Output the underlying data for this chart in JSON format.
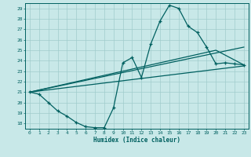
{
  "xlabel": "Humidex (Indice chaleur)",
  "xlim": [
    -0.5,
    23.5
  ],
  "ylim": [
    17.5,
    29.5
  ],
  "yticks": [
    18,
    19,
    20,
    21,
    22,
    23,
    24,
    25,
    26,
    27,
    28,
    29
  ],
  "xticks": [
    0,
    1,
    2,
    3,
    4,
    5,
    6,
    7,
    8,
    9,
    10,
    11,
    12,
    13,
    14,
    15,
    16,
    17,
    18,
    19,
    20,
    21,
    22,
    23
  ],
  "bg_color": "#c8e8e8",
  "line_color": "#006060",
  "series1_x": [
    0,
    1,
    2,
    3,
    4,
    5,
    6,
    7,
    8,
    9,
    10,
    11,
    12,
    13,
    14,
    15,
    16,
    17,
    18,
    19,
    20,
    21,
    22,
    23
  ],
  "series1_y": [
    21.0,
    20.8,
    20.0,
    19.2,
    18.7,
    18.1,
    17.7,
    17.6,
    17.6,
    19.5,
    23.8,
    24.3,
    22.4,
    25.6,
    27.8,
    29.3,
    29.0,
    27.3,
    26.7,
    25.3,
    23.7,
    23.8,
    23.7,
    23.6
  ],
  "series2_x": [
    0,
    23
  ],
  "series2_y": [
    21.0,
    23.5
  ],
  "series3_x": [
    0,
    23
  ],
  "series3_y": [
    21.0,
    25.3
  ],
  "series4_x": [
    0,
    20,
    23
  ],
  "series4_y": [
    21.0,
    25.0,
    23.6
  ]
}
